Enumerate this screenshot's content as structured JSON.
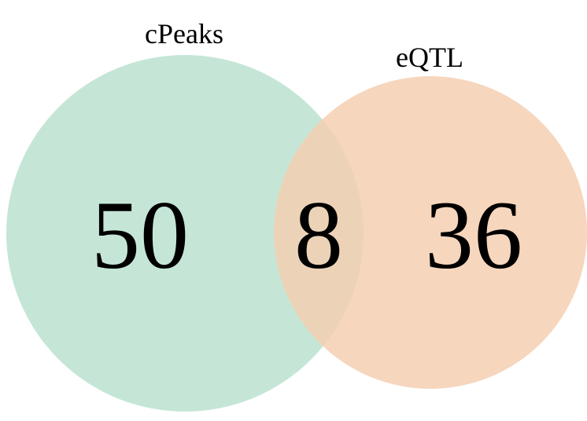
{
  "venn": {
    "sets": [
      {
        "id": "a",
        "name": "cPeaks",
        "color": "#c5e6d6"
      },
      {
        "id": "b",
        "name": "eQTL",
        "color": "#f6d6bd"
      }
    ],
    "regions": {
      "a_only": "50",
      "both": "8",
      "b_only": "36"
    },
    "overlap_color": "#ecd3b8"
  }
}
